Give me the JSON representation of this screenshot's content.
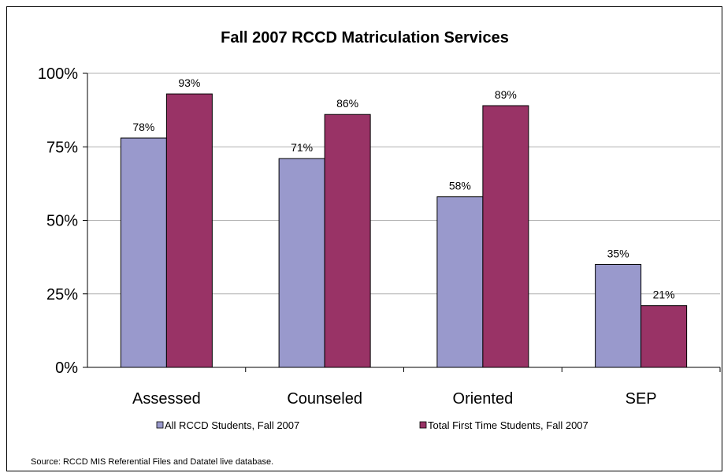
{
  "chart_data": {
    "type": "bar",
    "title": "Fall 2007 RCCD Matriculation Services",
    "categories": [
      "Assessed",
      "Counseled",
      "Oriented",
      "SEP"
    ],
    "series": [
      {
        "name": "All RCCD Students, Fall 2007",
        "color": "#9999cc",
        "values": [
          78,
          71,
          58,
          35
        ],
        "labels": [
          "78%",
          "71%",
          "58%",
          "35%"
        ]
      },
      {
        "name": "Total First Time Students, Fall 2007",
        "color": "#993366",
        "values": [
          93,
          86,
          89,
          21
        ],
        "labels": [
          "93%",
          "86%",
          "89%",
          "21%"
        ]
      }
    ],
    "yticks": [
      {
        "value": 0,
        "label": "0%"
      },
      {
        "value": 25,
        "label": "25%"
      },
      {
        "value": 50,
        "label": "50%"
      },
      {
        "value": 75,
        "label": "75%"
      },
      {
        "value": 100,
        "label": "100%"
      }
    ],
    "ylim": [
      0,
      100
    ],
    "grid": true,
    "legend_position": "bottom",
    "xlabel": "",
    "ylabel": ""
  },
  "source": "Source: RCCD MIS Referential Files and Datatel live database."
}
